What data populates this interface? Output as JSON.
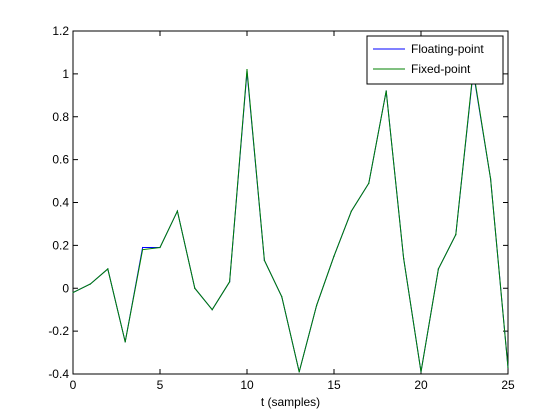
{
  "chart_data": {
    "type": "line",
    "title": "",
    "xlabel": "t (samples)",
    "ylabel": "",
    "xlim": [
      0,
      25
    ],
    "ylim": [
      -0.4,
      1.2
    ],
    "xticks": [
      0,
      5,
      10,
      15,
      20,
      25
    ],
    "xtick_labels": [
      "0",
      "5",
      "10",
      "15",
      "20",
      "25"
    ],
    "yticks": [
      -0.4,
      -0.2,
      0,
      0.2,
      0.4,
      0.6,
      0.8,
      1,
      1.2
    ],
    "ytick_labels": [
      "-0.4",
      "-0.2",
      "0",
      "0.2",
      "0.4",
      "0.6",
      "0.8",
      "1",
      "1.2"
    ],
    "grid": false,
    "legend_position": "top-right",
    "x": [
      0,
      1,
      2,
      3,
      4,
      5,
      6,
      7,
      8,
      9,
      10,
      11,
      12,
      13,
      14,
      15,
      16,
      17,
      18,
      19,
      20,
      21,
      22,
      23,
      24,
      25
    ],
    "series": [
      {
        "name": "Floating-point",
        "color": "#0000ff",
        "values": [
          -0.02,
          0.02,
          0.09,
          -0.25,
          0.19,
          0.19,
          0.36,
          0.0,
          -0.1,
          0.03,
          1.01,
          0.13,
          -0.04,
          -0.39,
          -0.08,
          0.15,
          0.36,
          0.49,
          0.92,
          0.14,
          -0.39,
          0.09,
          0.25,
          1.01,
          0.51,
          -0.37
        ]
      },
      {
        "name": "Fixed-point",
        "color": "#008000",
        "values": [
          -0.02,
          0.02,
          0.09,
          -0.25,
          0.18,
          0.19,
          0.36,
          0.0,
          -0.1,
          0.03,
          1.02,
          0.13,
          -0.04,
          -0.39,
          -0.08,
          0.15,
          0.36,
          0.49,
          0.92,
          0.14,
          -0.39,
          0.09,
          0.25,
          1.02,
          0.51,
          -0.37
        ]
      }
    ]
  }
}
